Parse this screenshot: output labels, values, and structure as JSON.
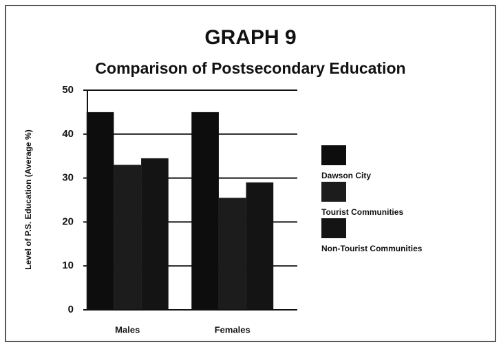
{
  "chart_data": {
    "type": "bar",
    "title": "GRAPH 9",
    "subtitle": "Comparison of Postsecondary Education",
    "y_label": "Level of P.S. Education (Average %)",
    "categories": [
      "Males",
      "Females"
    ],
    "series": [
      {
        "name": "Dawson City",
        "color": "#0d0d0d",
        "values": [
          45,
          45
        ]
      },
      {
        "name": "Tourist Communities",
        "color": "#1c1c1c",
        "values": [
          33,
          25.5
        ]
      },
      {
        "name": "Non-Tourist Communities",
        "color": "#141414",
        "values": [
          34.5,
          29
        ]
      }
    ],
    "ylim": [
      0,
      50
    ],
    "yticks": [
      0,
      10,
      20,
      30,
      40,
      50
    ],
    "grid": true,
    "legend": "right"
  }
}
